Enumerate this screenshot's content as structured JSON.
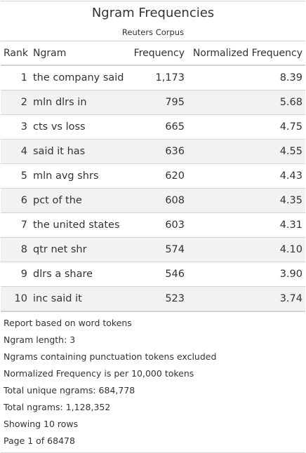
{
  "header": {
    "title": "Ngram Frequencies",
    "subtitle": "Reuters Corpus"
  },
  "columns": {
    "rank": "Rank",
    "ngram": "Ngram",
    "frequency": "Frequency",
    "normalized": "Normalized Frequency"
  },
  "rows": [
    {
      "rank": "1",
      "ngram": "the company said",
      "frequency": "1,173",
      "normalized": "8.39"
    },
    {
      "rank": "2",
      "ngram": "mln dlrs in",
      "frequency": "795",
      "normalized": "5.68"
    },
    {
      "rank": "3",
      "ngram": "cts vs loss",
      "frequency": "665",
      "normalized": "4.75"
    },
    {
      "rank": "4",
      "ngram": "said it has",
      "frequency": "636",
      "normalized": "4.55"
    },
    {
      "rank": "5",
      "ngram": "mln avg shrs",
      "frequency": "620",
      "normalized": "4.43"
    },
    {
      "rank": "6",
      "ngram": "pct of the",
      "frequency": "608",
      "normalized": "4.35"
    },
    {
      "rank": "7",
      "ngram": "the united states",
      "frequency": "603",
      "normalized": "4.31"
    },
    {
      "rank": "8",
      "ngram": "qtr net shr",
      "frequency": "574",
      "normalized": "4.10"
    },
    {
      "rank": "9",
      "ngram": "dlrs a share",
      "frequency": "546",
      "normalized": "3.90"
    },
    {
      "rank": "10",
      "ngram": "inc said it",
      "frequency": "523",
      "normalized": "3.74"
    }
  ],
  "footnotes": [
    "Report based on word tokens",
    "Ngram length: 3",
    "Ngrams containing punctuation tokens excluded",
    "Normalized Frequency is per 10,000 tokens",
    "Total unique ngrams: 684,778",
    "Total ngrams: 1,128,352",
    "Showing 10 rows",
    "Page 1 of 68478"
  ],
  "colors": {
    "border": "#d3d3d3",
    "stripe": "#f2f2f2",
    "text": "#333333"
  }
}
